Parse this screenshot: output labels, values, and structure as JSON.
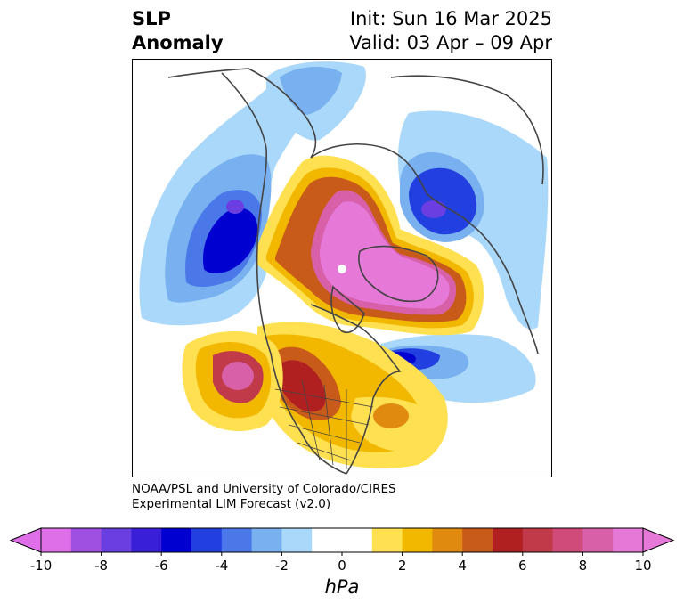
{
  "header": {
    "title_line1": "SLP",
    "title_line2": "Anomaly",
    "init_text": "Init: Sun 16 Mar 2025",
    "valid_text": "Valid: 03 Apr – 09 Apr"
  },
  "credit": {
    "line1": "NOAA/PSL and University of Colorado/CIRES",
    "line2": "Experimental LIM Forecast (v2.0)"
  },
  "colorbar": {
    "unit_label": "hPa",
    "tick_labels": [
      "-10",
      "-8",
      "-6",
      "-4",
      "-2",
      "0",
      "2",
      "4",
      "6",
      "8",
      "10"
    ],
    "colors": [
      "#df6fe8",
      "#a050e0",
      "#6a3ee0",
      "#3a1fd8",
      "#0000d0",
      "#2240e0",
      "#4a78e8",
      "#78b0f0",
      "#aad8fa",
      "#ffffff",
      "#ffffff",
      "#ffe050",
      "#f2b800",
      "#e08a10",
      "#c85a1a",
      "#b02020",
      "#c03a4a",
      "#d04a7a",
      "#d860a8",
      "#e678d8"
    ]
  },
  "map": {
    "projection": "north-polar-stereographic",
    "features": [
      {
        "kind": "low",
        "name": "Northeast Pacific low",
        "center_value": "-6"
      },
      {
        "kind": "low",
        "name": "Northwest Russia low",
        "center_value": "-6"
      },
      {
        "kind": "low",
        "name": "North Atlantic low",
        "center_value": "-6"
      },
      {
        "kind": "high",
        "name": "Arctic high",
        "center_value": "10"
      },
      {
        "kind": "high",
        "name": "Eastern Pacific high",
        "center_value": "8"
      },
      {
        "kind": "high",
        "name": "Western North America high",
        "center_value": "6"
      }
    ]
  }
}
